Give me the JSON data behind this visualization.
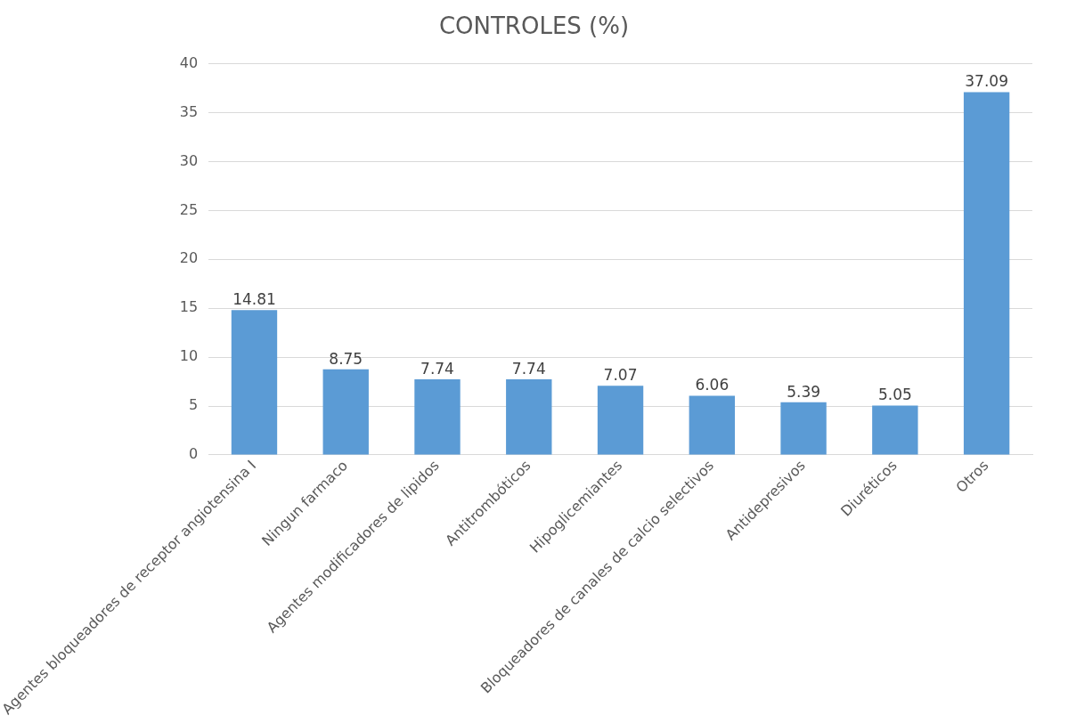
{
  "chart_data": {
    "type": "bar",
    "title": "CONTROLES (%)",
    "categories": [
      "Agentes bloqueadores de receptor angiotensina I",
      "Ningun farmaco",
      "Agentes modificadores de lipidos",
      "Antitrombóticos",
      "Hipoglicemiantes",
      "Bloqueadores de canales de calcio selectivos",
      "Antidepresivos",
      "Diuréticos",
      "Otros"
    ],
    "values": [
      14.81,
      8.75,
      7.74,
      7.74,
      7.07,
      6.06,
      5.39,
      5.05,
      37.09
    ],
    "color": "#5b9bd5",
    "ylim": [
      0,
      40
    ],
    "yticks": [
      0,
      5,
      10,
      15,
      20,
      25,
      30,
      35,
      40
    ],
    "grid": "y",
    "data_labels": true,
    "legend": false
  }
}
